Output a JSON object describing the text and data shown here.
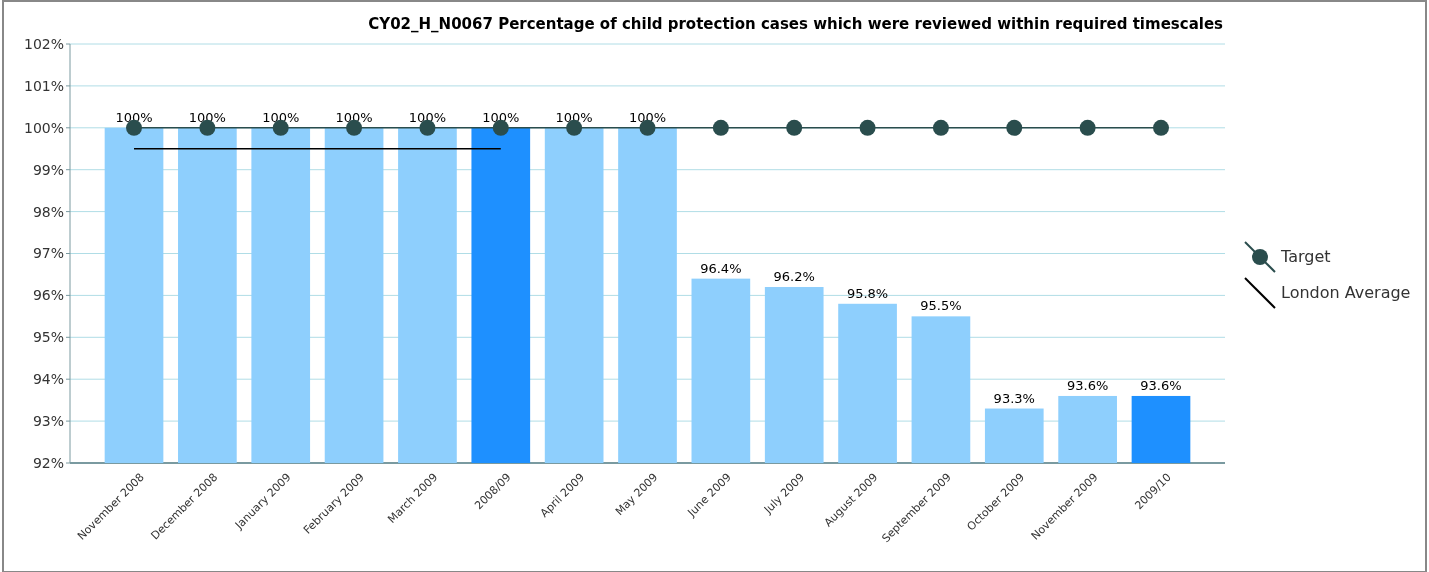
{
  "chart_data": {
    "type": "bar",
    "title": "CY02_H_N0067 Percentage of child protection cases which were reviewed within required timescales",
    "categories": [
      "November 2008",
      "December 2008",
      "January 2009",
      "February 2009",
      "March 2009",
      "2008/09",
      "April 2009",
      "May 2009",
      "June 2009",
      "July 2009",
      "August 2009",
      "September 2009",
      "October 2009",
      "November 2009",
      "2009/10"
    ],
    "series": [
      {
        "values": [
          100,
          100,
          100,
          100,
          100,
          100,
          100,
          100,
          96.4,
          96.2,
          95.8,
          95.5,
          93.3,
          93.6,
          93.6
        ],
        "colors": [
          "#8ecffd",
          "#8ecffd",
          "#8ecffd",
          "#8ecffd",
          "#8ecffd",
          "#1e90ff",
          "#8ecffd",
          "#8ecffd",
          "#8ecffd",
          "#8ecffd",
          "#8ecffd",
          "#8ecffd",
          "#8ecffd",
          "#8ecffd",
          "#1e90ff"
        ],
        "value_labels": [
          "100%",
          "100%",
          "100%",
          "100%",
          "100%",
          "100%",
          "100%",
          "100%",
          "96.4%",
          "96.2%",
          "95.8%",
          "95.5%",
          "93.3%",
          "93.6%",
          "93.6%"
        ]
      },
      {
        "type": "line",
        "name": "Target",
        "color": "#2a4d4d",
        "marker": "circle",
        "values": [
          100,
          100,
          100,
          100,
          100,
          100,
          100,
          100,
          100,
          100,
          100,
          100,
          100,
          100,
          100
        ]
      },
      {
        "type": "line",
        "name": "London Average",
        "color": "#000000",
        "marker": "none",
        "values": [
          99.5,
          99.5,
          99.5,
          99.5,
          99.5,
          99.5,
          null,
          null,
          null,
          null,
          null,
          null,
          null,
          null,
          null
        ]
      }
    ],
    "ylim": [
      92,
      102
    ],
    "yticks": [
      {
        "value": 92,
        "label": "92%"
      },
      {
        "value": 93,
        "label": "93%"
      },
      {
        "value": 94,
        "label": "94%"
      },
      {
        "value": 95,
        "label": "95%"
      },
      {
        "value": 96,
        "label": "96%"
      },
      {
        "value": 97,
        "label": "97%"
      },
      {
        "value": 98,
        "label": "98%"
      },
      {
        "value": 99,
        "label": "99%"
      },
      {
        "value": 100,
        "label": "100%"
      },
      {
        "value": 101,
        "label": "101%"
      },
      {
        "value": 102,
        "label": "102%"
      }
    ],
    "grid": "y",
    "legend": "right"
  }
}
